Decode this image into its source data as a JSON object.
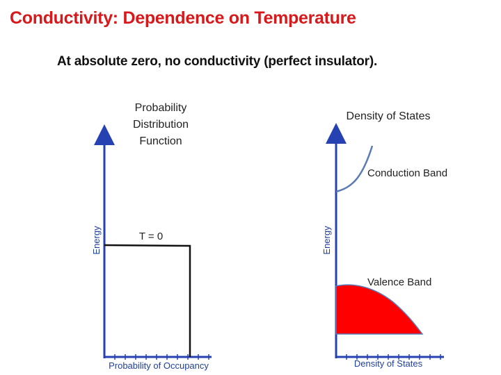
{
  "slide": {
    "title": "Conductivity: Dependence on Temperature",
    "subtitle": "At absolute zero, no conductivity (perfect insulator)."
  },
  "left_plot": {
    "title_lines": [
      "Probability",
      "Distribution",
      "Function"
    ],
    "x_axis_label": "Probability of Occupancy",
    "y_axis_label": "Energy",
    "curve_label": "T = 0"
  },
  "right_plot": {
    "title": "Density of States",
    "x_axis_label": "Density of States",
    "y_axis_label": "Energy",
    "conduction_label": "Conduction Band",
    "valence_label": "Valence Band"
  },
  "colors": {
    "title": "#d7191c",
    "axis": "#2541b2",
    "valence_fill": "#ff0000",
    "conduction_curve": "#5b7bb8"
  }
}
